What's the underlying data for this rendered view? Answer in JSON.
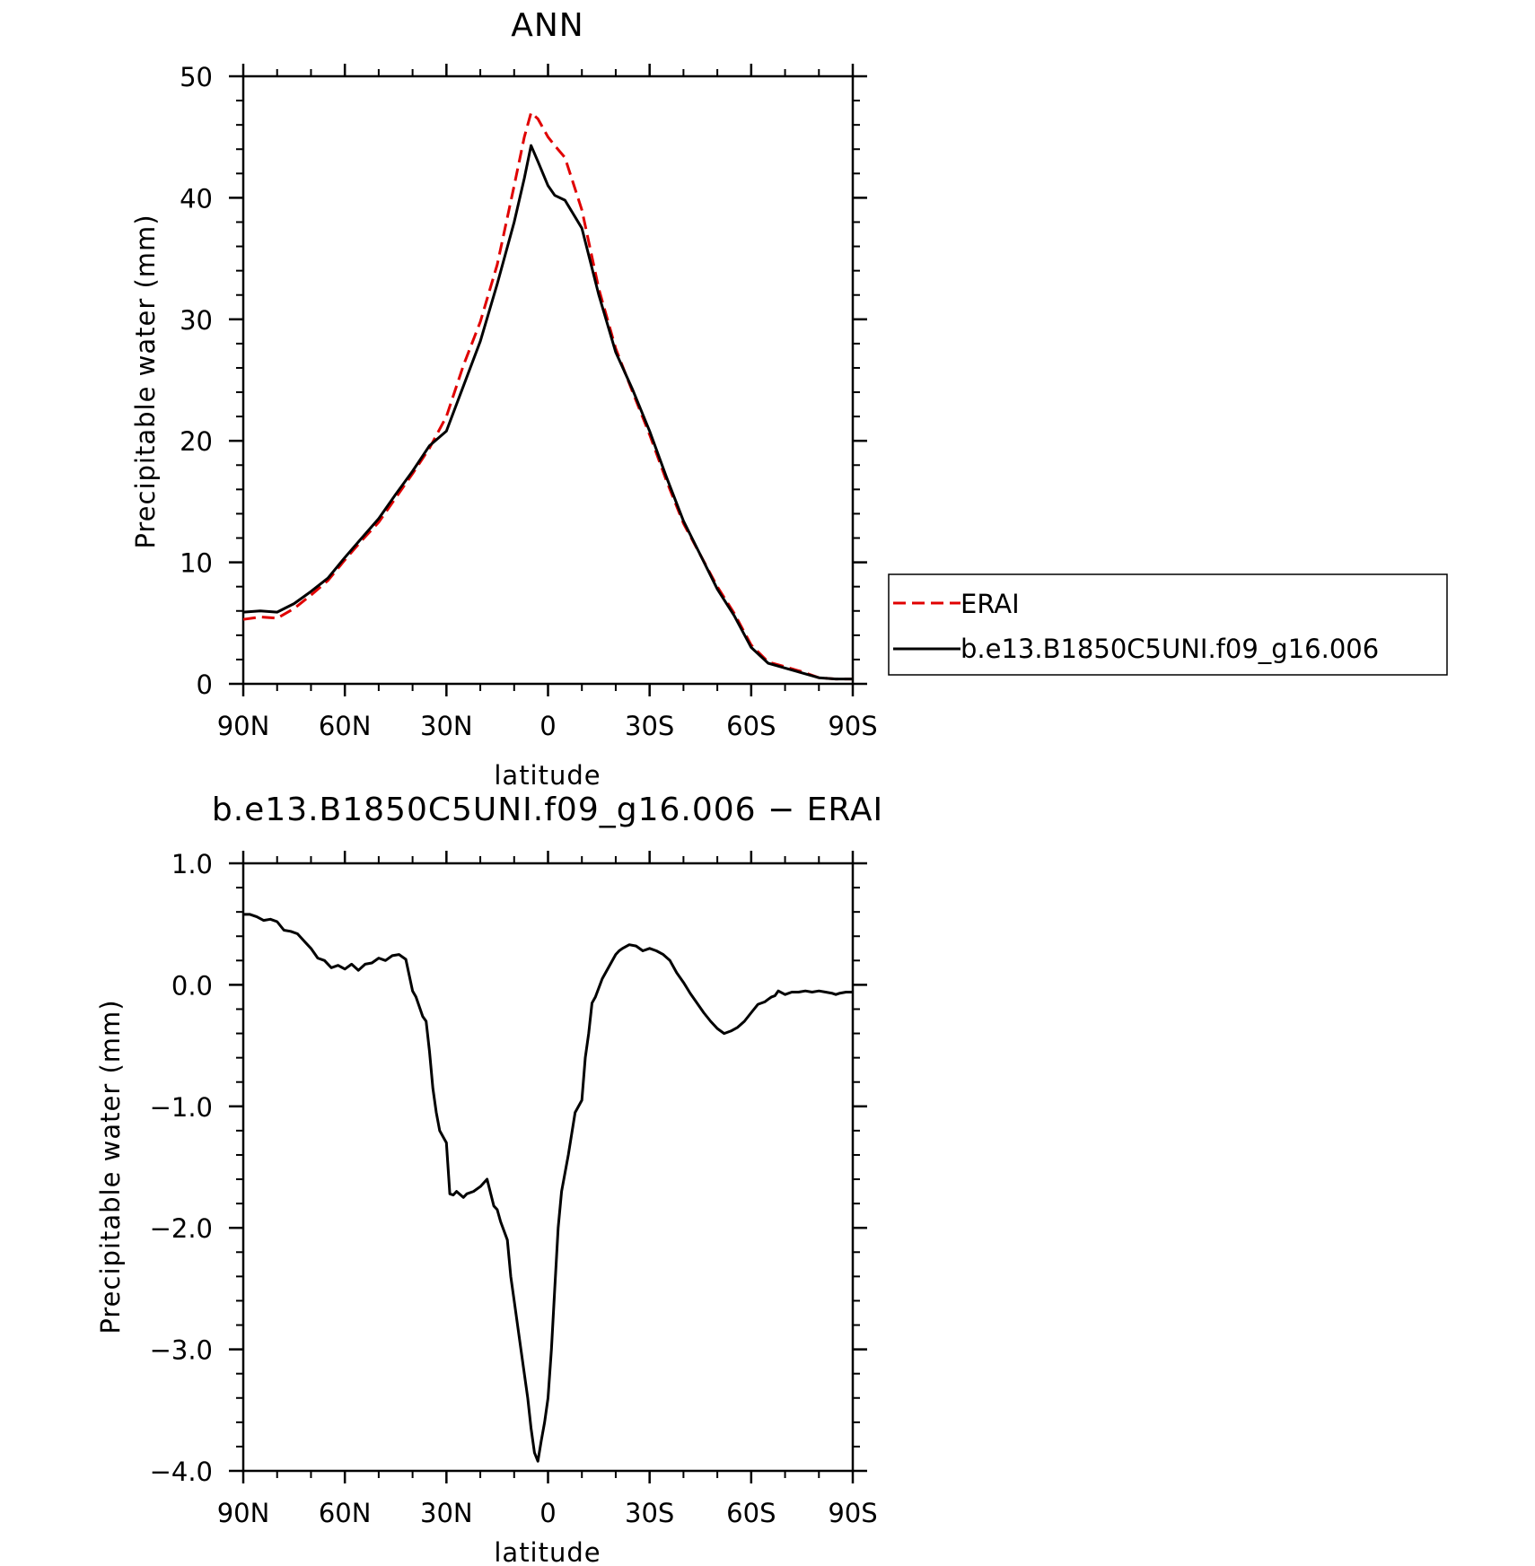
{
  "chart_data": [
    {
      "type": "line",
      "title": "ANN",
      "xlabel": "latitude",
      "ylabel": "Precipitable water (mm)",
      "xlim": [
        90,
        -90
      ],
      "ylim": [
        0,
        50
      ],
      "x_ticks": [
        90,
        60,
        30,
        0,
        -30,
        -60,
        -90
      ],
      "x_tick_labels": [
        "90N",
        "60N",
        "30N",
        "0",
        "30S",
        "60S",
        "90S"
      ],
      "y_ticks": [
        0,
        10,
        20,
        30,
        40,
        50
      ],
      "y_tick_labels": [
        "0",
        "10",
        "20",
        "30",
        "40",
        "50"
      ],
      "grid": false,
      "legend": {
        "placement": "right",
        "entries": [
          {
            "label": "ERAI",
            "color": "#e00000",
            "style": "dashed"
          },
          {
            "label": "b.e13.B1850C5UNI.f09_g16.006",
            "color": "#000000",
            "style": "solid"
          }
        ]
      },
      "series": [
        {
          "name": "ERAI",
          "color": "#e00000",
          "style": "dashed",
          "x": [
            90,
            85,
            80,
            75,
            70,
            65,
            60,
            55,
            50,
            45,
            40,
            35,
            30,
            25,
            20,
            15,
            10,
            7,
            5,
            3,
            0,
            -2,
            -5,
            -10,
            -15,
            -20,
            -25,
            -30,
            -35,
            -40,
            -45,
            -50,
            -55,
            -60,
            -65,
            -70,
            -75,
            -80,
            -85,
            -90
          ],
          "y": [
            5.3,
            5.5,
            5.4,
            6.2,
            7.3,
            8.5,
            10.2,
            11.8,
            13.3,
            15.3,
            17.3,
            19.4,
            22.0,
            26.2,
            29.8,
            34.5,
            41.0,
            45.0,
            47.0,
            46.5,
            45.0,
            44.3,
            43.3,
            39.0,
            32.5,
            27.6,
            24.0,
            20.5,
            16.7,
            13.2,
            10.6,
            8.0,
            5.8,
            3.2,
            1.8,
            1.4,
            1.0,
            0.5,
            0.4,
            0.4
          ]
        },
        {
          "name": "b.e13.B1850C5UNI.f09_g16.006",
          "color": "#000000",
          "style": "solid",
          "x": [
            90,
            85,
            80,
            75,
            70,
            65,
            60,
            55,
            50,
            45,
            40,
            35,
            30,
            25,
            20,
            15,
            10,
            7,
            5,
            3,
            0,
            -2,
            -5,
            -10,
            -15,
            -20,
            -25,
            -30,
            -35,
            -40,
            -45,
            -50,
            -55,
            -60,
            -65,
            -70,
            -75,
            -80,
            -85,
            -90
          ],
          "y": [
            5.9,
            6.0,
            5.9,
            6.6,
            7.6,
            8.7,
            10.4,
            12.0,
            13.6,
            15.6,
            17.5,
            19.6,
            20.8,
            24.5,
            28.2,
            32.9,
            38.0,
            41.6,
            44.3,
            43.0,
            41.0,
            40.2,
            39.8,
            37.5,
            32.0,
            27.3,
            24.2,
            20.8,
            17.0,
            13.4,
            10.6,
            7.8,
            5.6,
            3.0,
            1.7,
            1.3,
            0.9,
            0.5,
            0.4,
            0.4
          ]
        }
      ]
    },
    {
      "type": "line",
      "title": "b.e13.B1850C5UNI.f09_g16.006 − ERAI",
      "xlabel": "latitude",
      "ylabel": "Precipitable water (mm)",
      "xlim": [
        90,
        -90
      ],
      "ylim": [
        -4.0,
        1.0
      ],
      "x_ticks": [
        90,
        60,
        30,
        0,
        -30,
        -60,
        -90
      ],
      "x_tick_labels": [
        "90N",
        "60N",
        "30N",
        "0",
        "30S",
        "60S",
        "90S"
      ],
      "y_ticks": [
        1.0,
        0.0,
        -1.0,
        -2.0,
        -3.0,
        -4.0
      ],
      "y_tick_labels": [
        "1.0",
        "0.0",
        "−1.0",
        "−2.0",
        "−3.0",
        "−4.0"
      ],
      "grid": false,
      "series": [
        {
          "color": "#000000",
          "style": "solid",
          "x": [
            90,
            88,
            86,
            84,
            82,
            80,
            78,
            76,
            74,
            72,
            70,
            68,
            66,
            64,
            62,
            60,
            58,
            56,
            54,
            52,
            50,
            48,
            46,
            44,
            42,
            40,
            39,
            37,
            36,
            35,
            34,
            33,
            32,
            30,
            29,
            28,
            27,
            25,
            24,
            22,
            20,
            18,
            16,
            15,
            14,
            12,
            11,
            10,
            8,
            6,
            5,
            4,
            3,
            2,
            1,
            0,
            -1,
            -2,
            -3,
            -4,
            -6,
            -8,
            -10,
            -11,
            -12,
            -13,
            -14,
            -16,
            -18,
            -20,
            -21,
            -22,
            -24,
            -26,
            -28,
            -30,
            -32,
            -34,
            -36,
            -38,
            -40,
            -42,
            -44,
            -46,
            -48,
            -50,
            -52,
            -54,
            -56,
            -58,
            -60,
            -62,
            -64,
            -65,
            -66,
            -67,
            -68,
            -70,
            -72,
            -74,
            -76,
            -78,
            -80,
            -82,
            -84,
            -85,
            -86,
            -88,
            -90
          ],
          "y": [
            0.58,
            0.58,
            0.56,
            0.53,
            0.54,
            0.52,
            0.45,
            0.44,
            0.42,
            0.36,
            0.3,
            0.22,
            0.2,
            0.14,
            0.16,
            0.13,
            0.17,
            0.12,
            0.17,
            0.18,
            0.22,
            0.2,
            0.24,
            0.25,
            0.21,
            -0.05,
            -0.1,
            -0.26,
            -0.3,
            -0.55,
            -0.85,
            -1.05,
            -1.2,
            -1.3,
            -1.72,
            -1.73,
            -1.7,
            -1.75,
            -1.72,
            -1.7,
            -1.66,
            -1.6,
            -1.82,
            -1.85,
            -1.95,
            -2.1,
            -2.4,
            -2.6,
            -3.0,
            -3.4,
            -3.65,
            -3.85,
            -3.92,
            -3.75,
            -3.6,
            -3.4,
            -3.0,
            -2.5,
            -2.0,
            -1.7,
            -1.4,
            -1.05,
            -0.95,
            -0.6,
            -0.4,
            -0.15,
            -0.1,
            0.05,
            0.15,
            0.25,
            0.28,
            0.3,
            0.33,
            0.32,
            0.28,
            0.3,
            0.28,
            0.25,
            0.2,
            0.1,
            0.02,
            -0.07,
            -0.15,
            -0.23,
            -0.3,
            -0.36,
            -0.4,
            -0.38,
            -0.35,
            -0.3,
            -0.23,
            -0.16,
            -0.14,
            -0.12,
            -0.1,
            -0.09,
            -0.05,
            -0.08,
            -0.06,
            -0.06,
            -0.05,
            -0.06,
            -0.05,
            -0.06,
            -0.07,
            -0.08,
            -0.07,
            -0.06,
            -0.06
          ]
        }
      ]
    }
  ]
}
